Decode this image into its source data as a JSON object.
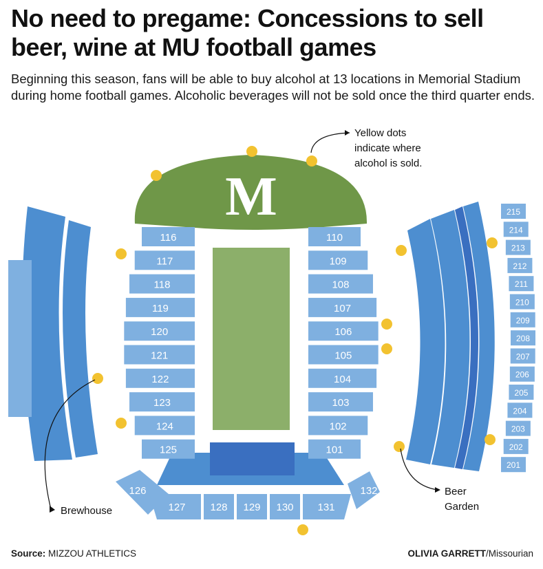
{
  "headline": "No need to pregame: Concessions to sell beer, wine at MU football games",
  "intro": "Beginning this season, fans will be able to buy alcohol at 13 locations in Memorial Stadium during home football games. Alcoholic beverages will not be sold once the third quarter ends.",
  "logo_letter": "M",
  "legend_note": [
    "Yellow dots",
    "indicate where",
    "alcohol is sold."
  ],
  "brewhouse_label": "Brewhouse",
  "beer_garden_label": [
    "Beer",
    "Garden"
  ],
  "sections": {
    "west": [
      "116",
      "117",
      "118",
      "119",
      "120",
      "121",
      "122",
      "123",
      "124",
      "125"
    ],
    "east": [
      "110",
      "109",
      "108",
      "107",
      "106",
      "105",
      "104",
      "103",
      "102",
      "101"
    ],
    "south": [
      "126",
      "127",
      "128",
      "129",
      "130",
      "131",
      "132"
    ],
    "upper_east": [
      "215",
      "214",
      "213",
      "212",
      "211",
      "210",
      "209",
      "208",
      "207",
      "206",
      "205",
      "204",
      "203",
      "202",
      "201"
    ]
  },
  "alcohol_locations_count": 13,
  "colors": {
    "section_light": "#7fb0e0",
    "stand_mid": "#4d8ed0",
    "stand_dark": "#3a6fc0",
    "field": "#8caf6a",
    "north_berm": "#6f9748",
    "alcohol_dot": "#f2c230"
  },
  "source_label": "Source:",
  "source_name": "MIZZOU ATHLETICS",
  "credit_name": "OLIVIA GARRETT",
  "credit_org": "/Missourian"
}
